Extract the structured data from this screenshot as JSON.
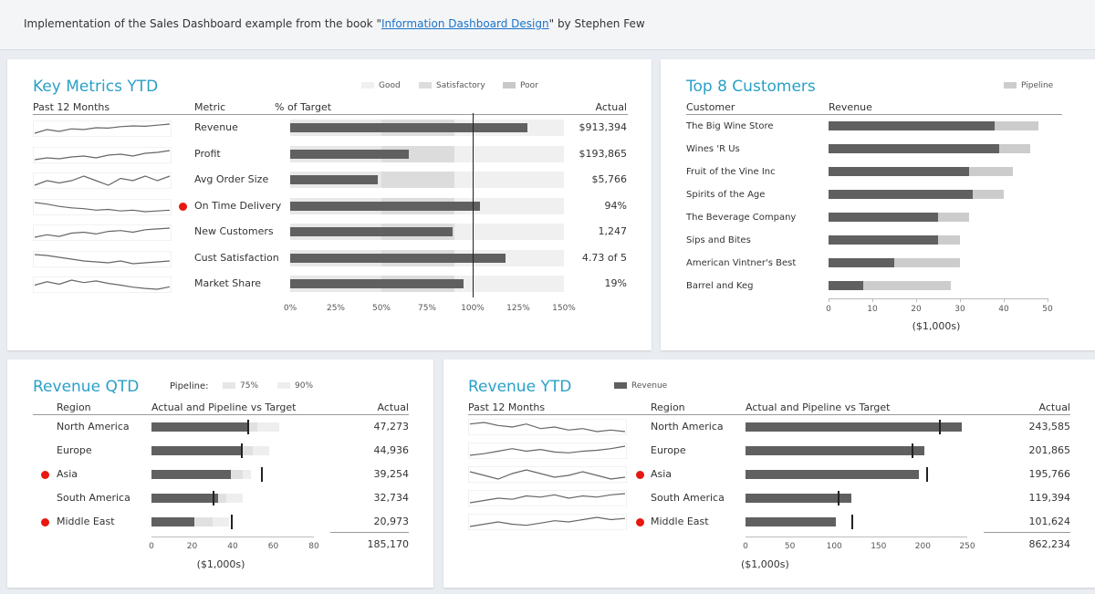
{
  "header": {
    "pre": "Implementation of the Sales Dashboard example from the book \"",
    "link": "Information Dashboard Design",
    "post": "\" by Stephen Few"
  },
  "colors": {
    "accent": "#2aa0c8",
    "bar": "#606060",
    "band_poor": "#e8e8e8",
    "band_sat": "#dcdcdc",
    "band_good": "#f0f0f0",
    "pipeline": "#cccccc",
    "alert": "#e8170f"
  },
  "key_metrics": {
    "title": "Key Metrics YTD",
    "legend": [
      "Good",
      "Satisfactory",
      "Poor"
    ],
    "col_spark": "Past 12 Months",
    "col_metric": "Metric",
    "col_pct": "% of Target",
    "col_actual": "Actual",
    "ticks": [
      "0%",
      "25%",
      "50%",
      "75%",
      "100%",
      "125%",
      "150%"
    ]
  },
  "top_customers": {
    "title": "Top 8 Customers",
    "legend": "Pipeline",
    "col_customer": "Customer",
    "col_revenue": "Revenue",
    "ticks": [
      "0",
      "10",
      "20",
      "30",
      "40",
      "50"
    ],
    "unit": "($1,000s)"
  },
  "revenue_qtd": {
    "title": "Revenue QTD",
    "pipeline_label": "Pipeline:",
    "pipeline_75": "75%",
    "pipeline_90": "90%",
    "col_region": "Region",
    "col_chart": "Actual and Pipeline vs Target",
    "col_actual": "Actual",
    "ticks": [
      "0",
      "20",
      "40",
      "60",
      "80"
    ],
    "unit": "($1,000s)",
    "total": "185,170"
  },
  "revenue_ytd": {
    "title": "Revenue YTD",
    "legend": "Revenue",
    "col_spark": "Past 12 Months",
    "col_region": "Region",
    "col_chart": "Actual and Pipeline vs Target",
    "col_actual": "Actual",
    "ticks": [
      "0",
      "50",
      "100",
      "150",
      "200",
      "250"
    ],
    "unit": "($1,000s)",
    "total": "862,234"
  },
  "chart_data": [
    {
      "type": "bar",
      "title": "Key Metrics YTD",
      "xlabel": "% of Target",
      "xlim": [
        0,
        150
      ],
      "bands": {
        "poor": [
          0,
          50
        ],
        "satisfactory": [
          50,
          90
        ],
        "good": [
          90,
          150
        ]
      },
      "target": 100,
      "categories": [
        "Revenue",
        "Profit",
        "Avg Order Size",
        "On Time Delivery",
        "New Customers",
        "Cust Satisfaction",
        "Market Share"
      ],
      "values": [
        130,
        65,
        48,
        104,
        89,
        118,
        95
      ],
      "actual_labels": [
        "$913,394",
        "$193,865",
        "$5,766",
        "94%",
        "1,247",
        "4.73 of 5",
        "19%"
      ],
      "alerts": [
        false,
        false,
        false,
        true,
        false,
        false,
        false
      ],
      "sparklines": [
        [
          5,
          6,
          5.5,
          6.2,
          6,
          6.5,
          6.4,
          6.8,
          7,
          6.9,
          7.2,
          7.5
        ],
        [
          6,
          6.2,
          6.1,
          6.3,
          6.4,
          6.2,
          6.5,
          6.6,
          6.4,
          6.7,
          6.8,
          7
        ],
        [
          6,
          6.1,
          6.05,
          6.1,
          6.2,
          6.1,
          6.0,
          6.15,
          6.1,
          6.2,
          6.1,
          6.2
        ],
        [
          7,
          6.8,
          6.5,
          6.3,
          6.2,
          6.0,
          6.1,
          5.9,
          6.0,
          5.8,
          5.9,
          6.0
        ],
        [
          5.5,
          5.8,
          5.6,
          6.0,
          6.1,
          5.9,
          6.2,
          6.3,
          6.1,
          6.4,
          6.5,
          6.6
        ],
        [
          6.5,
          6.4,
          6.2,
          6.0,
          5.8,
          5.7,
          5.6,
          5.8,
          5.5,
          5.6,
          5.7,
          5.8
        ],
        [
          6,
          6.8,
          6.2,
          7.2,
          6.6,
          7.0,
          6.4,
          6.0,
          5.5,
          5.2,
          5.0,
          5.6
        ]
      ]
    },
    {
      "type": "bar",
      "title": "Top 8 Customers",
      "xlabel": "($1,000s)",
      "xlim": [
        0,
        50
      ],
      "categories": [
        "The Big Wine Store",
        "Wines 'R Us",
        "Fruit of the Vine Inc",
        "Spirits of the Age",
        "The Beverage Company",
        "Sips and Bites",
        "American Vintner's Best",
        "Barrel and Keg"
      ],
      "series": [
        {
          "name": "Revenue",
          "values": [
            38,
            39,
            32,
            33,
            25,
            25,
            15,
            8
          ]
        },
        {
          "name": "Pipeline",
          "values": [
            48,
            46,
            42,
            40,
            32,
            30,
            30,
            28
          ]
        }
      ]
    },
    {
      "type": "bar",
      "title": "Revenue QTD",
      "xlabel": "($1,000s)",
      "xlim": [
        0,
        80
      ],
      "categories": [
        "North America",
        "Europe",
        "Asia",
        "South America",
        "Middle East"
      ],
      "actual": [
        47.3,
        44.9,
        39.3,
        32.7,
        21.0
      ],
      "pipeline_75": [
        52,
        50,
        45,
        37,
        30
      ],
      "pipeline_90": [
        63,
        58,
        49,
        45,
        38
      ],
      "target": [
        47,
        44,
        54,
        30,
        39
      ],
      "actual_labels": [
        "47,273",
        "44,936",
        "39,254",
        "32,734",
        "20,973"
      ],
      "alerts": [
        false,
        false,
        true,
        false,
        true
      ]
    },
    {
      "type": "bar",
      "title": "Revenue YTD",
      "xlabel": "($1,000s)",
      "xlim": [
        0,
        250
      ],
      "categories": [
        "North America",
        "Europe",
        "Asia",
        "South America",
        "Middle East"
      ],
      "actual": [
        243.6,
        201.9,
        195.8,
        119.4,
        101.6
      ],
      "target": [
        218,
        187,
        204,
        104,
        119
      ],
      "actual_labels": [
        "243,585",
        "201,865",
        "195,766",
        "119,394",
        "101,624"
      ],
      "alerts": [
        false,
        false,
        true,
        false,
        true
      ],
      "sparklines": [
        [
          6.5,
          6.6,
          6.4,
          6.3,
          6.5,
          6.2,
          6.3,
          6.1,
          6.2,
          6.0,
          6.1,
          6.0
        ],
        [
          5.5,
          5.7,
          6.0,
          6.3,
          6.0,
          6.2,
          5.9,
          5.8,
          6.0,
          6.1,
          6.3,
          6.6
        ],
        [
          6.2,
          6.0,
          5.8,
          6.1,
          6.3,
          6.1,
          5.9,
          6.0,
          6.2,
          6.0,
          5.8,
          5.9
        ],
        [
          5.6,
          5.8,
          6.0,
          5.9,
          6.2,
          6.1,
          6.3,
          6.0,
          6.2,
          6.1,
          6.3,
          6.4
        ],
        [
          5.8,
          6.0,
          6.2,
          6.0,
          5.9,
          6.1,
          6.3,
          6.2,
          6.4,
          6.6,
          6.4,
          6.5
        ]
      ]
    }
  ]
}
